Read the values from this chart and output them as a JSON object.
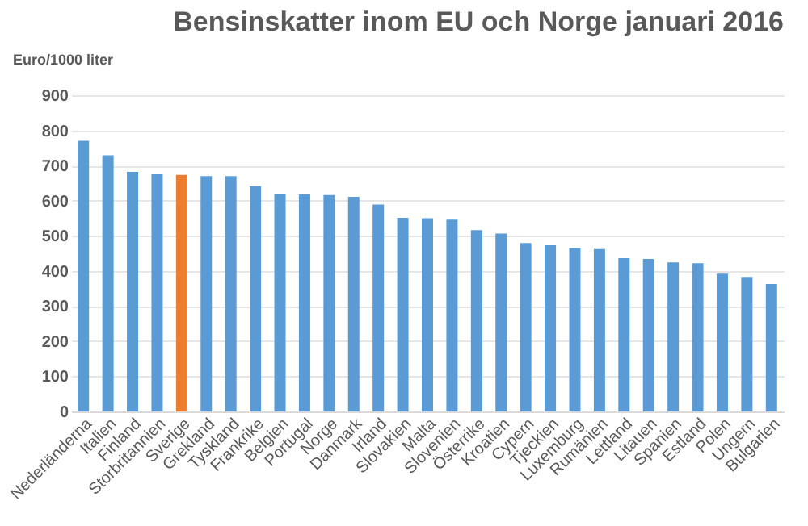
{
  "chart_data": {
    "type": "bar",
    "title": "Bensinskatter inom EU och Norge januari 2016",
    "ylabel": "Euro/1000 liter",
    "categories": [
      "Nederländerna",
      "Italien",
      "Finland",
      "Storbritannien",
      "Sverige",
      "Grekland",
      "Tyskland",
      "Frankrike",
      "Belgien",
      "Portugal",
      "Norge",
      "Danmark",
      "Irland",
      "Slovakien",
      "Malta",
      "Slovenien",
      "Österrike",
      "Kroatien",
      "Cypern",
      "Tjeckien",
      "Luxemburg",
      "Rumänien",
      "Lettland",
      "Litauen",
      "Spanien",
      "Estland",
      "Polen",
      "Ungern",
      "Bulgarien"
    ],
    "values": [
      770,
      729,
      682,
      675,
      673,
      670,
      670,
      641,
      620,
      618,
      616,
      611,
      589,
      551,
      550,
      546,
      516,
      506,
      479,
      473,
      465,
      462,
      436,
      434,
      424,
      422,
      392,
      383,
      363
    ],
    "colors": [
      "#5b9bd5",
      "#5b9bd5",
      "#5b9bd5",
      "#5b9bd5",
      "#ed7d31",
      "#5b9bd5",
      "#5b9bd5",
      "#5b9bd5",
      "#5b9bd5",
      "#5b9bd5",
      "#5b9bd5",
      "#5b9bd5",
      "#5b9bd5",
      "#5b9bd5",
      "#5b9bd5",
      "#5b9bd5",
      "#5b9bd5",
      "#5b9bd5",
      "#5b9bd5",
      "#5b9bd5",
      "#5b9bd5",
      "#5b9bd5",
      "#5b9bd5",
      "#5b9bd5",
      "#5b9bd5",
      "#5b9bd5",
      "#5b9bd5",
      "#5b9bd5",
      "#5b9bd5"
    ],
    "ylim": [
      0,
      900
    ],
    "yticks": [
      0,
      100,
      200,
      300,
      400,
      500,
      600,
      700,
      800,
      900
    ],
    "grid": "y",
    "legend": false
  }
}
